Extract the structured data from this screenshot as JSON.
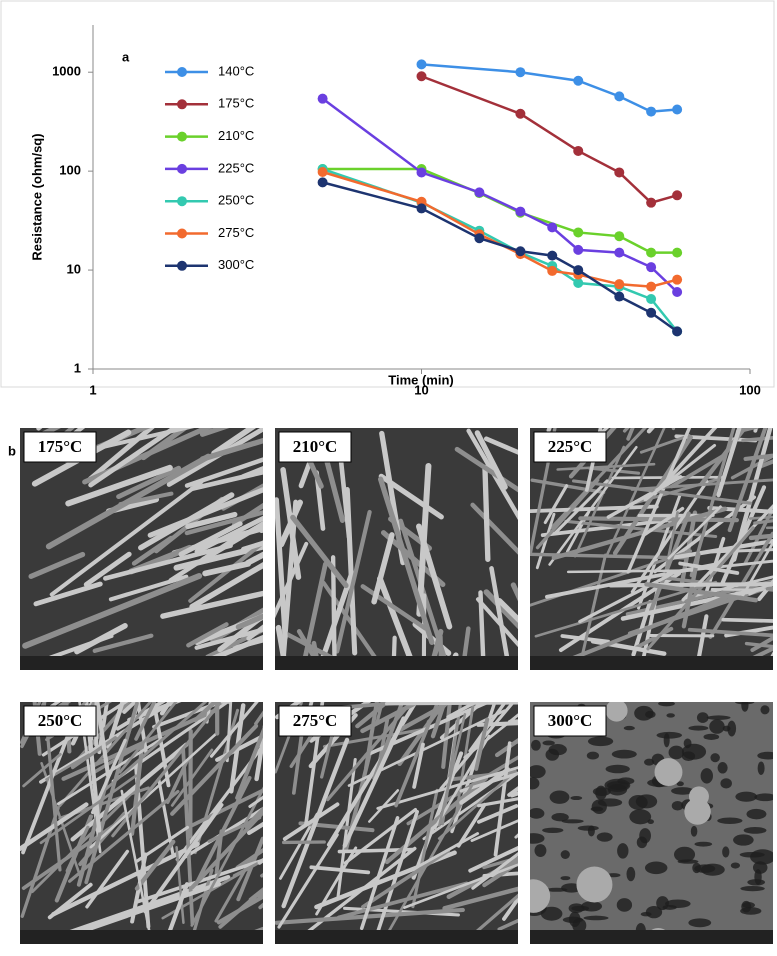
{
  "chart_data": {
    "type": "line",
    "panel_label": "a",
    "x_label": "Time (min)",
    "y_label": "Resistance (ohm/sq)",
    "xscale": "log",
    "yscale": "log",
    "xlim": [
      1,
      100
    ],
    "ylim": [
      1,
      3000
    ],
    "xticks": [
      1,
      10,
      100
    ],
    "yticks": [
      1,
      10,
      100,
      1000
    ],
    "legend": "upper left",
    "series": [
      {
        "name": "140°C",
        "color": "#3d8fe6",
        "x": [
          10,
          20,
          30,
          40,
          50,
          60
        ],
        "values": [
          1200,
          1000,
          820,
          570,
          400,
          420
        ]
      },
      {
        "name": "175°C",
        "color": "#a3303a",
        "x": [
          10,
          20,
          30,
          40,
          50,
          60
        ],
        "values": [
          910,
          380,
          160,
          97,
          48,
          57
        ]
      },
      {
        "name": "210°C",
        "color": "#6ad12b",
        "x": [
          5,
          10,
          15,
          20,
          30,
          40,
          50,
          60
        ],
        "values": [
          105,
          105,
          60,
          38,
          24,
          22,
          15,
          15
        ]
      },
      {
        "name": "225°C",
        "color": "#6a3fe0",
        "x": [
          5,
          10,
          15,
          20,
          25,
          30,
          40,
          50,
          60
        ],
        "values": [
          540,
          97,
          61,
          39,
          27,
          16,
          15,
          10.7,
          6
        ]
      },
      {
        "name": "250°C",
        "color": "#33c9b0",
        "x": [
          5,
          10,
          15,
          20,
          25,
          30,
          40,
          50,
          60
        ],
        "values": [
          105,
          48,
          25,
          15,
          11,
          7.4,
          6.8,
          5.1,
          2.4
        ]
      },
      {
        "name": "275°C",
        "color": "#f26a2e",
        "x": [
          5,
          10,
          15,
          20,
          25,
          30,
          40,
          50,
          60
        ],
        "values": [
          98,
          49,
          23,
          14.5,
          9.8,
          9,
          7.2,
          6.8,
          8
        ]
      },
      {
        "name": "300°C",
        "color": "#1d3470",
        "x": [
          5,
          10,
          15,
          20,
          25,
          30,
          40,
          50,
          60
        ],
        "values": [
          77,
          42,
          21,
          15.5,
          14,
          10,
          5.4,
          3.7,
          2.4
        ]
      }
    ]
  },
  "panel_b": {
    "label": "b",
    "images": [
      {
        "label": "175°C"
      },
      {
        "label": "210°C"
      },
      {
        "label": "225°C"
      },
      {
        "label": "250°C"
      },
      {
        "label": "275°C"
      },
      {
        "label": "300°C"
      }
    ]
  }
}
